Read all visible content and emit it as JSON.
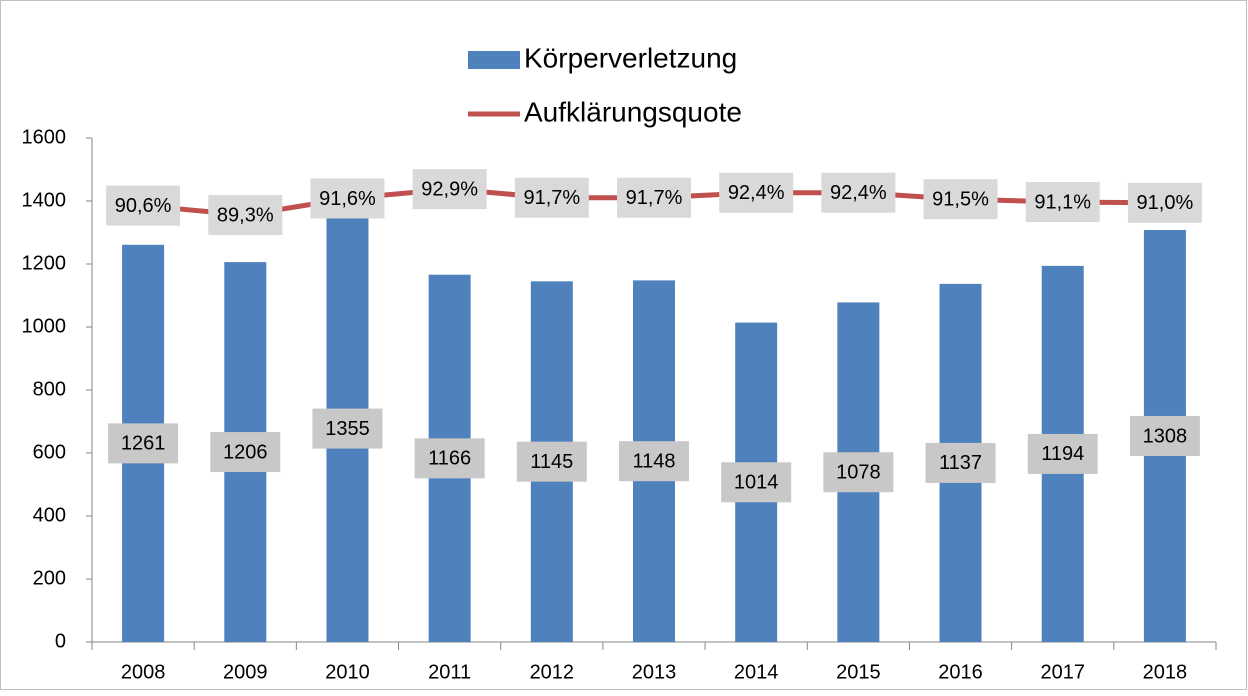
{
  "chart_data": {
    "type": "bar",
    "categories": [
      "2008",
      "2009",
      "2010",
      "2011",
      "2012",
      "2013",
      "2014",
      "2015",
      "2016",
      "2017",
      "2018"
    ],
    "series": [
      {
        "name": "Körperverletzung",
        "type": "bar",
        "color": "#4f81bd",
        "values": [
          1261,
          1206,
          1355,
          1166,
          1145,
          1148,
          1014,
          1078,
          1137,
          1194,
          1308
        ]
      },
      {
        "name": "Aufklärungsquote",
        "type": "line",
        "axis": "y2",
        "color": "#c0504d",
        "values": [
          90.6,
          89.3,
          91.6,
          92.9,
          91.7,
          91.7,
          92.4,
          92.4,
          91.5,
          91.1,
          91.0
        ],
        "value_labels": [
          "90,6%",
          "89,3%",
          "91,6%",
          "92,9%",
          "91,7%",
          "91,7%",
          "92,4%",
          "92,4%",
          "91,5%",
          "91,1%",
          "91,0%"
        ]
      }
    ],
    "ylim": [
      0,
      1600
    ],
    "yticks": [
      0,
      200,
      400,
      600,
      800,
      1000,
      1200,
      1400,
      1600
    ],
    "y2lim": [
      30,
      100
    ],
    "legend": "top"
  }
}
